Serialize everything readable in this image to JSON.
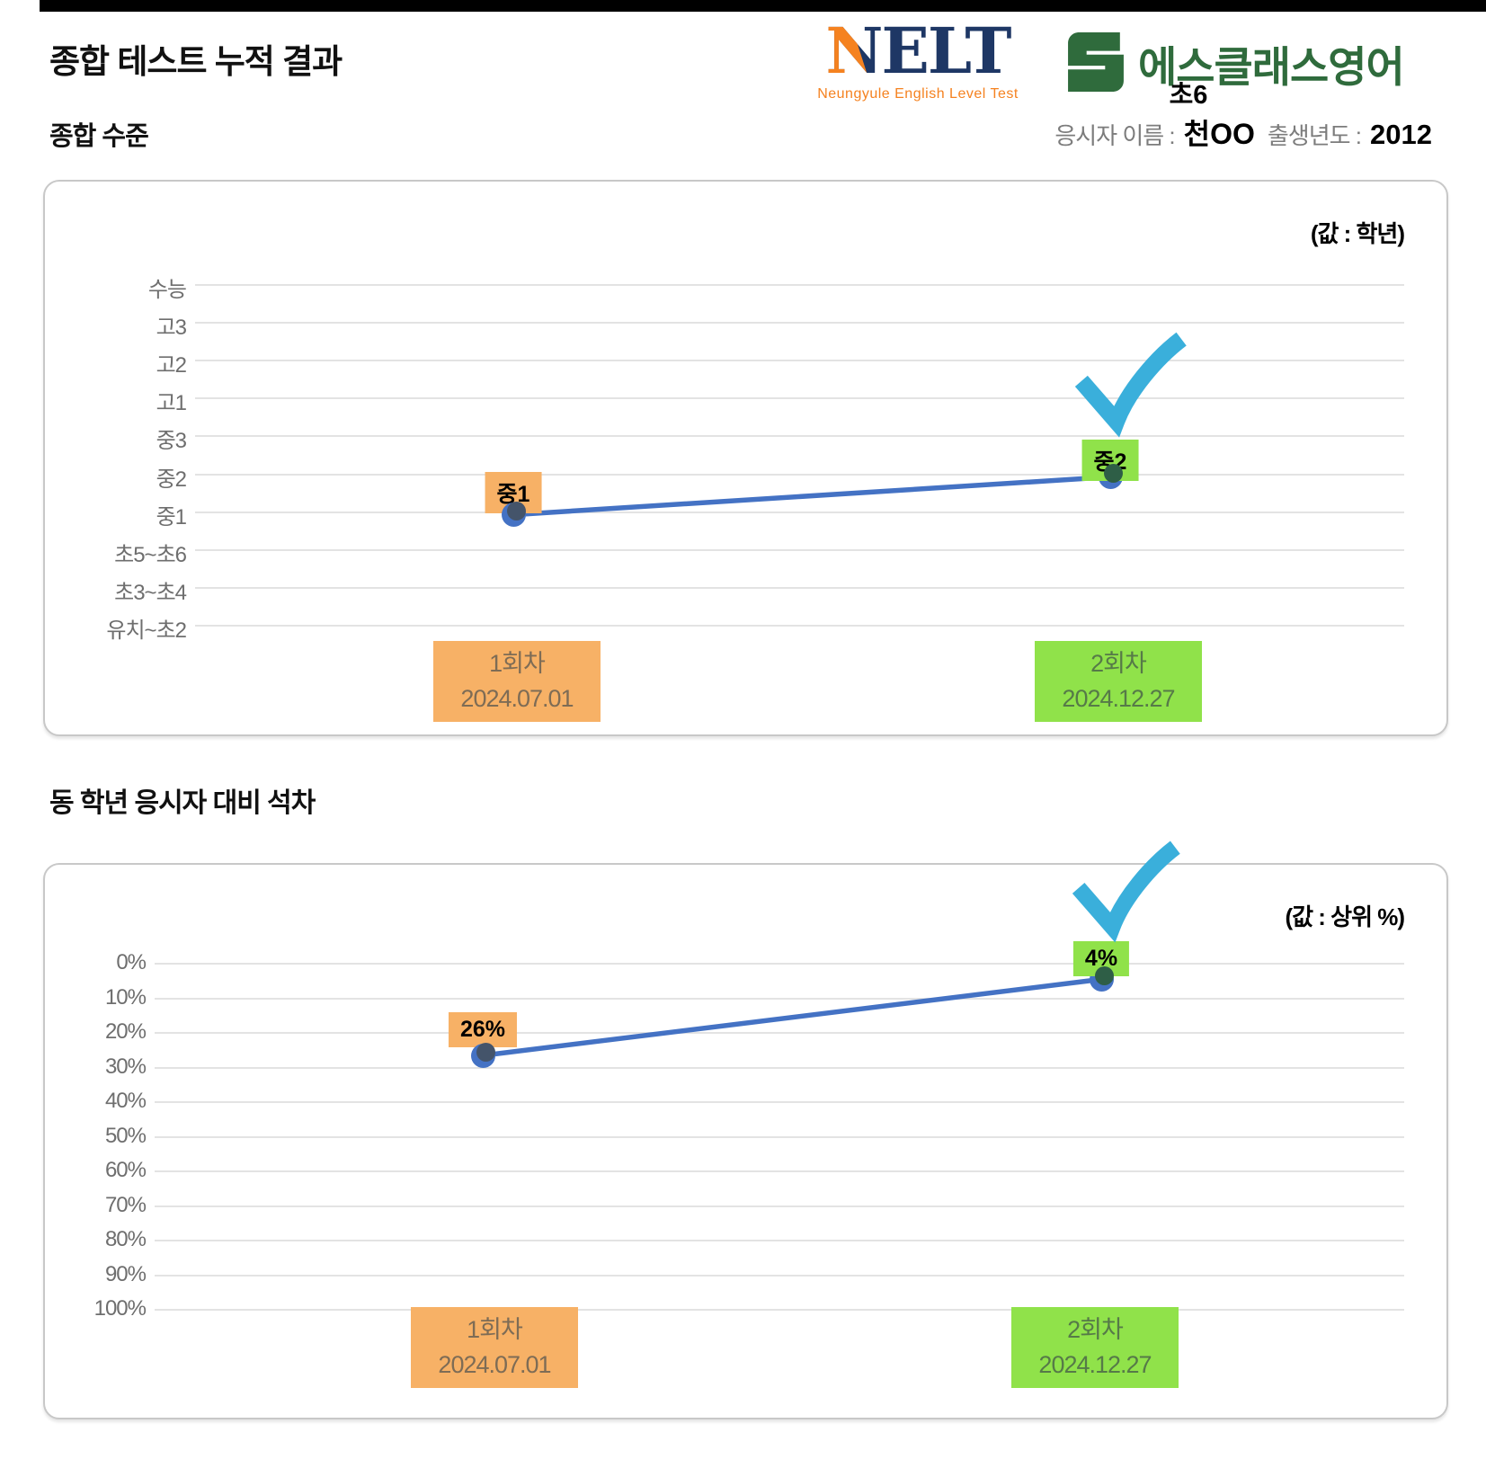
{
  "top": {
    "title": "종합 테스트 누적 결과",
    "nelt_logo": {
      "wordmark": "NELT",
      "subtitle": "Neungyule English Level Test"
    },
    "academy": {
      "name": "에스클래스영어"
    },
    "student": {
      "grade": "초6",
      "name_label": "응시자 이름 :",
      "name": "천OO",
      "birth_label": "출생년도 :",
      "birth_year": "2012"
    }
  },
  "sections": [
    {
      "title": "종합 수준"
    },
    {
      "title": "동 학년 응시자 대비 석차"
    }
  ],
  "colors": {
    "line": "#4472C4",
    "marker_first": "#44546A",
    "marker_second": "#2E5E46",
    "round1_bg": "#F7B166",
    "round1_text": "#7E6C55",
    "round2_bg": "#90E24A",
    "round2_text": "#567A48",
    "check": "#3AAFDB",
    "grid": "#E3E3E3",
    "nelt_navy": "#1E3765",
    "nelt_orange": "#F58220",
    "academy_green": "#2F6B3C"
  },
  "chart_data": [
    {
      "type": "line",
      "title": "종합 수준",
      "unit_note": "(값 : 학년)",
      "value_kind": "category",
      "y_axis": {
        "ticks_top_to_bottom": [
          "수능",
          "고3",
          "고2",
          "고1",
          "중3",
          "중2",
          "중1",
          "초5~초6",
          "초3~초4",
          "유치~초2"
        ],
        "grid": true
      },
      "x_categories": [
        {
          "round": "1회차",
          "date": "2024.07.01"
        },
        {
          "round": "2회차",
          "date": "2024.12.27"
        }
      ],
      "points": [
        {
          "x": "1회차 2024.07.01",
          "value": "중1",
          "label": "중1"
        },
        {
          "x": "2회차 2024.12.27",
          "value": "중2",
          "label": "중2"
        }
      ],
      "checked_point_index": 1,
      "legend": "none"
    },
    {
      "type": "line",
      "title": "동 학년 응시자 대비 석차",
      "unit_note": "(값 : 상위 %)",
      "value_kind": "percent_top_rank",
      "y_axis": {
        "ticks_top_to_bottom": [
          "0%",
          "10%",
          "20%",
          "30%",
          "40%",
          "50%",
          "60%",
          "70%",
          "80%",
          "90%",
          "100%"
        ],
        "range_top_to_bottom": [
          0,
          100
        ],
        "grid": true
      },
      "x_categories": [
        {
          "round": "1회차",
          "date": "2024.07.01"
        },
        {
          "round": "2회차",
          "date": "2024.12.27"
        }
      ],
      "points": [
        {
          "x": "1회차 2024.07.01",
          "value": 26,
          "label": "26%"
        },
        {
          "x": "2회차 2024.12.27",
          "value": 4,
          "label": "4%"
        }
      ],
      "checked_point_index": 1,
      "legend": "none"
    }
  ]
}
